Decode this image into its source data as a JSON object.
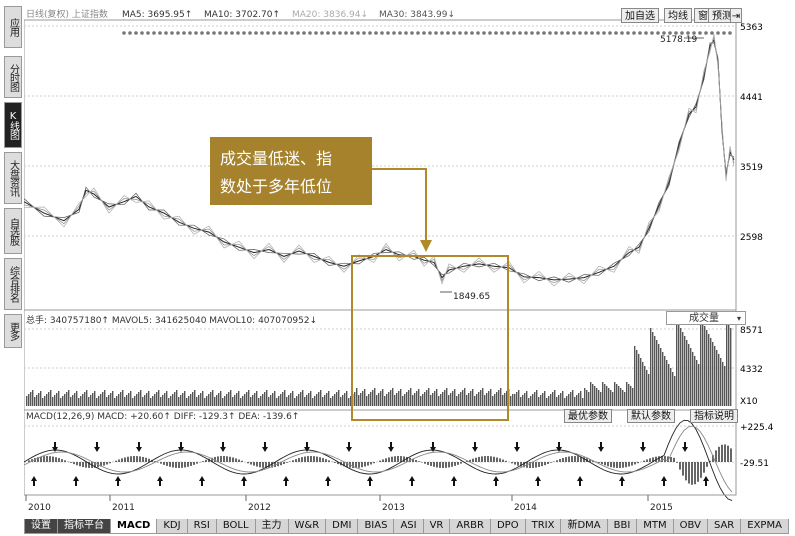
{
  "sidebar": {
    "tabs": [
      {
        "label": "应用"
      },
      {
        "label": "分时图"
      },
      {
        "label": "K线图",
        "active": true
      },
      {
        "label": "大盘资讯"
      },
      {
        "label": "自选股"
      },
      {
        "label": "综合排名"
      },
      {
        "label": "更多"
      }
    ]
  },
  "main_panel": {
    "indicator_line": [
      {
        "text": "日线(复权) 上证指数",
        "color": "#888888"
      },
      {
        "text": "MA5: 3695.95↑",
        "color": "#333333"
      },
      {
        "text": "MA10: 3702.70↑",
        "color": "#333333"
      },
      {
        "text": "MA20: 3836.94↓",
        "color": "#aaaaaa"
      },
      {
        "text": "MA30: 3843.99↓",
        "color": "#555555"
      }
    ],
    "buttons": [
      "加自选",
      "均线",
      "窗",
      "预测"
    ],
    "y_ticks": [
      "5363",
      "4441",
      "3519",
      "2598"
    ],
    "y_values": [
      5363,
      4441,
      3519,
      2598
    ],
    "high_label": "5178.19",
    "low_label": "1849.65"
  },
  "annotation": {
    "callout_line1": "成交量低迷、指",
    "callout_line2": "数处于多年低位"
  },
  "volume_panel": {
    "indicator_line": "总手: 340757180↑  MAVOL5: 341625040  MAVOL10: 407070952↓",
    "dropdown": "成交量",
    "y_ticks": [
      "8571",
      "4332"
    ],
    "unit": "X10"
  },
  "macd_panel": {
    "indicator_line": "MACD(12,26,9)  MACD: +20.60↑  DIFF: -129.3↑  DEA: -139.6↑",
    "buttons": [
      "最优参数",
      "默认参数",
      "指标说明"
    ],
    "y_ticks": [
      "+225.4",
      "-29.51"
    ]
  },
  "x_axis": {
    "years": [
      "2010",
      "2011",
      "2012",
      "2013",
      "2014",
      "2015"
    ]
  },
  "bottom_tabs": [
    {
      "label": "设置",
      "style": "dark"
    },
    {
      "label": "指标平台",
      "style": "dark"
    },
    {
      "label": "MACD",
      "style": "active"
    },
    {
      "label": "KDJ"
    },
    {
      "label": "RSI"
    },
    {
      "label": "BOLL"
    },
    {
      "label": "主力"
    },
    {
      "label": "W&R"
    },
    {
      "label": "DMI"
    },
    {
      "label": "BIAS"
    },
    {
      "label": "ASI"
    },
    {
      "label": "VR"
    },
    {
      "label": "ARBR"
    },
    {
      "label": "DPO"
    },
    {
      "label": "TRIX"
    },
    {
      "label": "新DMA"
    },
    {
      "label": "BBI"
    },
    {
      "label": "MTM"
    },
    {
      "label": "OBV"
    },
    {
      "label": "SAR"
    },
    {
      "label": "EXPMA"
    }
  ],
  "colors": {
    "accent_gold": "#b08a2a",
    "callout_bg": "#a5822b",
    "grid": "#bbbbbb"
  }
}
